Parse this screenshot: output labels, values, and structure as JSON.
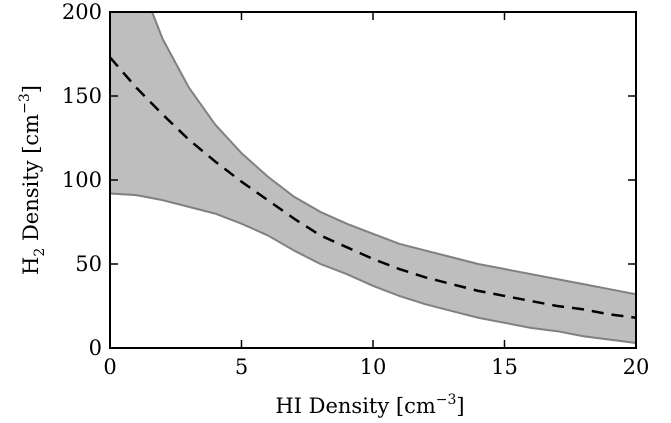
{
  "chart_data": {
    "type": "area",
    "title": "",
    "xlabel": {
      "main": "HI Density [cm",
      "sup": "−3",
      "close": "]"
    },
    "ylabel": {
      "main": "H",
      "sub": "2",
      "mid": " Density [cm",
      "sup": "−3",
      "close": "]"
    },
    "xlim": [
      0,
      20
    ],
    "ylim": [
      0,
      200
    ],
    "x_ticks": [
      "0",
      "5",
      "10",
      "15",
      "20"
    ],
    "y_ticks": [
      "0",
      "50",
      "100",
      "150",
      "200"
    ],
    "grid": false,
    "legend": "none",
    "colors": {
      "band_fill": "#bebebe",
      "band_edge": "#808080",
      "median": "#000000",
      "axes": "#000000"
    },
    "series": [
      {
        "role": "median",
        "style": "dashed",
        "x": [
          0,
          1,
          2,
          3,
          4,
          5,
          6,
          7,
          8,
          9,
          10,
          11,
          12,
          13,
          14,
          15,
          16,
          17,
          18,
          19,
          20
        ],
        "y": [
          173,
          155,
          139,
          124,
          111,
          99,
          88,
          77,
          67,
          60,
          53,
          47,
          42,
          38,
          34,
          31,
          28,
          25,
          23,
          20,
          18
        ]
      },
      {
        "role": "upper-bound",
        "style": "solid",
        "x": [
          1.6,
          2,
          3,
          4,
          5,
          6,
          7,
          8,
          9,
          10,
          11,
          12,
          13,
          14,
          15,
          16,
          17,
          18,
          19,
          20
        ],
        "y": [
          200,
          184,
          155,
          133,
          116,
          102,
          90,
          81,
          74,
          68,
          62,
          58,
          54,
          50,
          47,
          44,
          41,
          38,
          35,
          32
        ]
      },
      {
        "role": "lower-bound",
        "style": "solid",
        "x": [
          0,
          1,
          2,
          3,
          4,
          5,
          6,
          7,
          8,
          9,
          10,
          11,
          12,
          13,
          14,
          15,
          16,
          17,
          18,
          19,
          20
        ],
        "y": [
          92,
          91,
          88,
          84,
          80,
          74,
          67,
          58,
          50,
          44,
          37,
          31,
          26,
          22,
          18,
          15,
          12,
          10,
          7,
          5,
          3
        ]
      }
    ]
  }
}
